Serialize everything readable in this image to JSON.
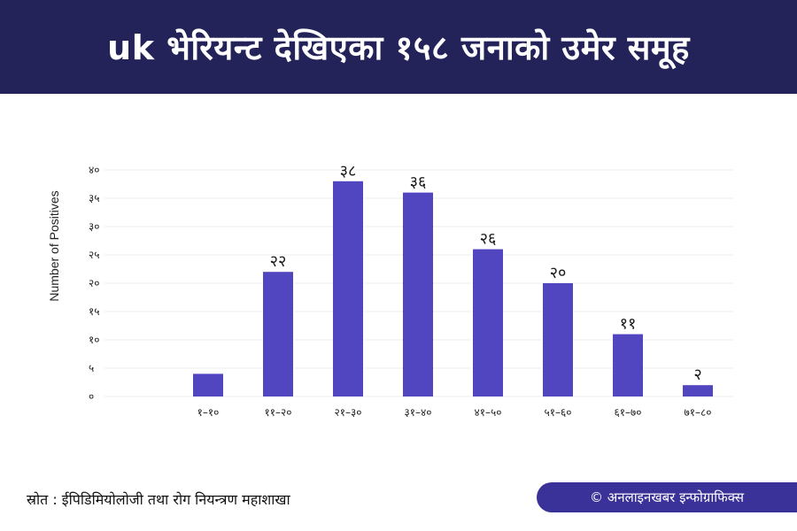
{
  "header": {
    "title": "uk भेरियन्ट देखिएका १५८ जनाको उमेर समूह"
  },
  "footer": {
    "source": "स्रोत : ईपिडिमियोलोजी तथा रोग नियन्त्रण महाशाखा",
    "credit": "© अनलाइनखबर इन्फोग्राफिक्स"
  },
  "colors": {
    "bar": "#5246c0",
    "header_bg": "#232359",
    "credit_bg": "#3a3199"
  },
  "chart_data": {
    "type": "bar",
    "title": "uk भेरियन्ट देखिएका १५८ जनाको उमेर समूह",
    "xlabel": "",
    "ylabel": "Number of Positives",
    "ylim": [
      0,
      40
    ],
    "yticks": [
      0,
      5,
      10,
      15,
      20,
      25,
      30,
      35,
      40
    ],
    "ytick_labels": [
      "०",
      "५",
      "१०",
      "१५",
      "२०",
      "२५",
      "३०",
      "३५",
      "४०"
    ],
    "categories": [
      "१–१०",
      "११–२०",
      "२१–३०",
      "३१–४०",
      "४१–५०",
      "५१–६०",
      "६१–७०",
      "७१–८०"
    ],
    "values": [
      4,
      22,
      38,
      36,
      26,
      20,
      11,
      2
    ],
    "data_labels": [
      "",
      "२२",
      "३८",
      "३६",
      "२६",
      "२०",
      "११",
      "२"
    ],
    "grid": true,
    "legend": "none"
  }
}
